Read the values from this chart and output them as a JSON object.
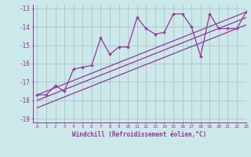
{
  "x": [
    0,
    1,
    2,
    3,
    4,
    5,
    6,
    7,
    8,
    9,
    10,
    11,
    12,
    13,
    14,
    15,
    16,
    17,
    18,
    19,
    20,
    21,
    22,
    23
  ],
  "y_main": [
    -17.7,
    -17.7,
    -17.2,
    -17.5,
    -16.3,
    -16.2,
    -16.1,
    -14.6,
    -15.5,
    -15.1,
    -15.1,
    -13.5,
    -14.1,
    -14.4,
    -14.3,
    -13.3,
    -13.3,
    -14.0,
    -15.6,
    -13.3,
    -14.1,
    -14.1,
    -14.1,
    -13.2
  ],
  "line1_x": [
    0,
    23
  ],
  "line1_y": [
    -17.7,
    -13.2
  ],
  "line2_x": [
    0,
    23
  ],
  "line2_y": [
    -18.0,
    -13.5
  ],
  "line3_x": [
    0,
    23
  ],
  "line3_y": [
    -18.4,
    -13.9
  ],
  "xlim": [
    -0.5,
    23
  ],
  "ylim": [
    -19.2,
    -12.8
  ],
  "yticks": [
    -19,
    -18,
    -17,
    -16,
    -15,
    -14,
    -13
  ],
  "xticks": [
    0,
    1,
    2,
    3,
    4,
    5,
    6,
    7,
    8,
    9,
    10,
    11,
    12,
    13,
    14,
    15,
    16,
    17,
    18,
    19,
    20,
    21,
    22,
    23
  ],
  "xlabel": "Windchill (Refroidissement éolien,°C)",
  "bg_color": "#cce9e9",
  "line_color": "#993399",
  "grid_color": "#aabbcc",
  "tick_color": "#993399",
  "label_color": "#993399"
}
